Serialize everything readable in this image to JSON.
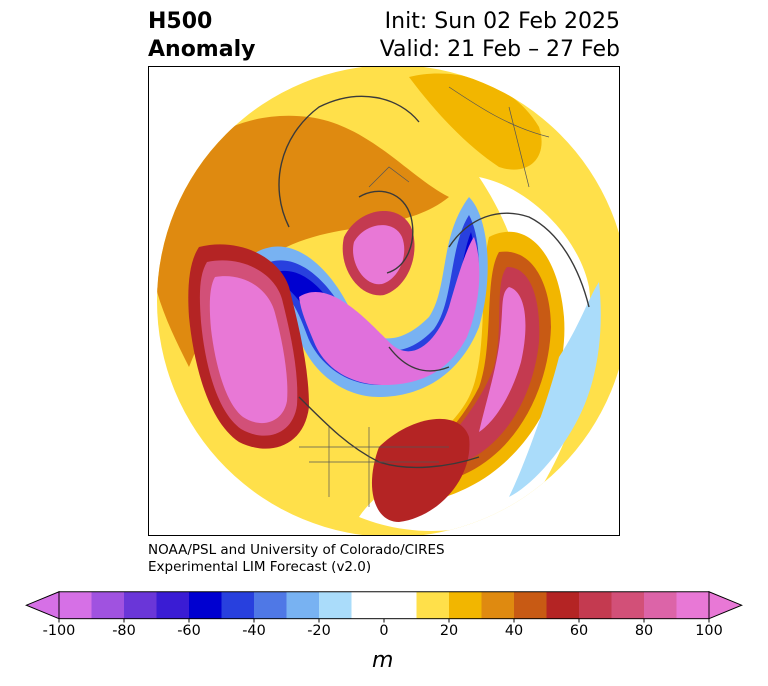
{
  "title": {
    "left_line1": "H500",
    "left_line2": "Anomaly",
    "right_line1": "Init: Sun 02 Feb 2025",
    "right_line2": "Valid: 21 Feb – 27 Feb"
  },
  "credit": {
    "line1": "NOAA/PSL and University of Colorado/CIRES",
    "line2": "Experimental LIM Forecast (v2.0)"
  },
  "colorbar": {
    "unit": "m",
    "ticks": [
      "-100",
      "-80",
      "-60",
      "-40",
      "-20",
      "0",
      "20",
      "40",
      "60",
      "80",
      "100"
    ],
    "colors": [
      "#d670e6",
      "#a052e0",
      "#6a36d8",
      "#3a1cd4",
      "#0000d0",
      "#2840de",
      "#4f78e6",
      "#78b2f2",
      "#aadcfa",
      "#ffffff",
      "#ffffff",
      "#ffe04a",
      "#f2b600",
      "#df8a10",
      "#c85a14",
      "#b42424",
      "#c43a50",
      "#d25078",
      "#dc64a8",
      "#e878d6"
    ]
  },
  "map": {
    "projection": "north-polar-stereographic",
    "colors": {
      "strong_negative": "#e070dc",
      "blue_band": "#0000d0",
      "positive_yellow": "#ffe04a",
      "positive_red": "#c43a50"
    }
  }
}
